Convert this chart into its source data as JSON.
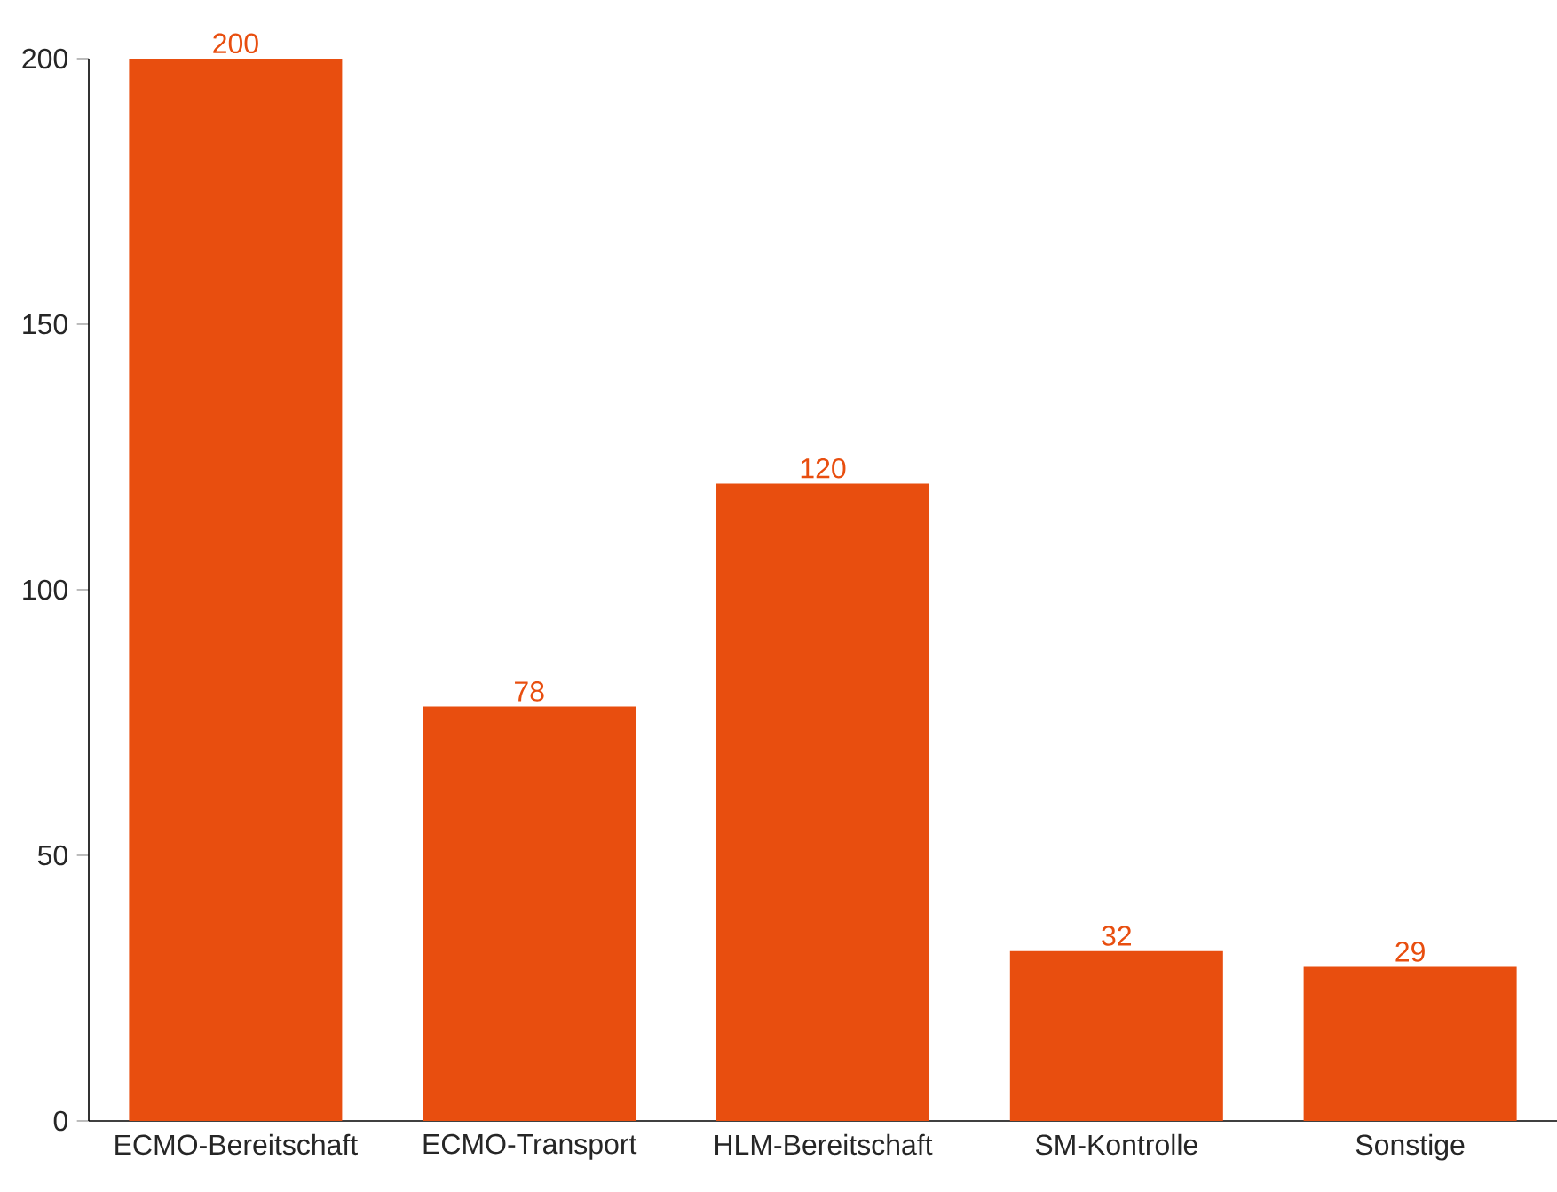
{
  "chart_data": {
    "type": "bar",
    "categories": [
      "ECMO-Bereitschaft",
      "ECMO-Transport",
      "HLM-Bereitschaft",
      "SM-Kontrolle",
      "Sonstige"
    ],
    "values": [
      200,
      78,
      120,
      32,
      29
    ],
    "color": "#e84e0f",
    "ylim": [
      0,
      200
    ],
    "yticks": [
      0,
      50,
      100,
      150,
      200
    ],
    "data_labels": true
  }
}
